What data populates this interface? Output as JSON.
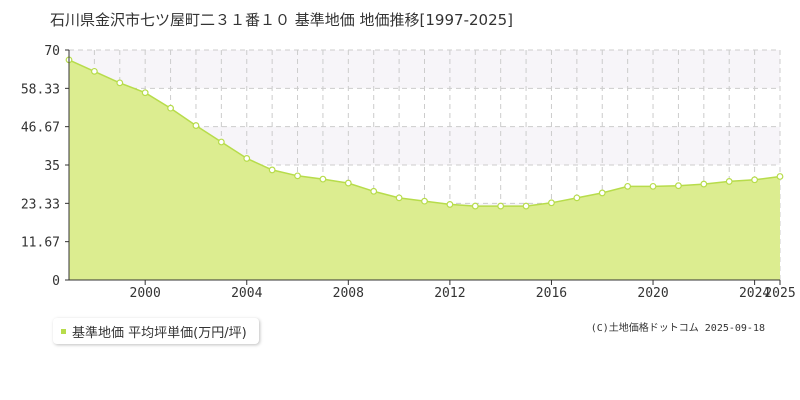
{
  "colors": {
    "fill": "#dced90",
    "line": "#b7dc4b",
    "marker_stroke": "#b7dc4b",
    "marker_fill": "#ffffff",
    "grid": "#cccccc",
    "band": "#f7f5f9",
    "axis": "#333333"
  },
  "chart_data": {
    "type": "area",
    "title": "石川県金沢市七ツ屋町二３１番１０ 基準地価 地価推移[1997-2025]",
    "xlabel": "",
    "ylabel": "",
    "xlim": [
      1997,
      2025
    ],
    "ylim": [
      0,
      70
    ],
    "yticks": [
      "0",
      "11.67",
      "23.33",
      "35",
      "46.67",
      "58.33",
      "70"
    ],
    "ytick_values": [
      0,
      11.67,
      23.33,
      35,
      46.67,
      58.33,
      70
    ],
    "xticks": [
      "2000",
      "2004",
      "2008",
      "2012",
      "2016",
      "2020",
      "2024",
      "2025"
    ],
    "xtick_values": [
      2000,
      2004,
      2008,
      2012,
      2016,
      2020,
      2024,
      2025
    ],
    "grid": true,
    "legend_position": "bottom-left",
    "series": [
      {
        "name": "基準地価 平均坪単価(万円/坪)",
        "x": [
          1997,
          1998,
          1999,
          2000,
          2001,
          2002,
          2003,
          2004,
          2005,
          2006,
          2007,
          2008,
          2009,
          2010,
          2011,
          2012,
          2013,
          2014,
          2015,
          2016,
          2017,
          2018,
          2019,
          2020,
          2021,
          2022,
          2023,
          2024,
          2025
        ],
        "values": [
          67.0,
          63.5,
          60.0,
          57.0,
          52.3,
          47.0,
          42.0,
          37.0,
          33.5,
          31.7,
          30.7,
          29.5,
          27.0,
          25.0,
          24.0,
          23.0,
          22.5,
          22.5,
          22.5,
          23.5,
          25.0,
          26.5,
          28.5,
          28.5,
          28.7,
          29.2,
          30.0,
          30.5,
          31.5
        ]
      }
    ]
  },
  "legend": {
    "label": "基準地価 平均坪単価(万円/坪)"
  },
  "credit": "(C)土地価格ドットコム 2025-09-18"
}
